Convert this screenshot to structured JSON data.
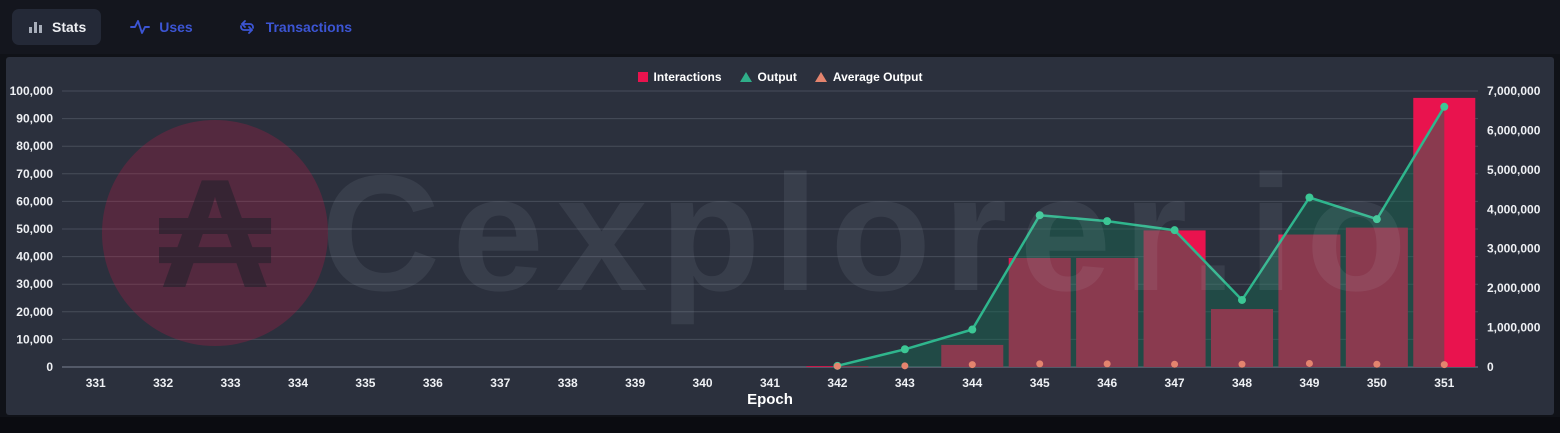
{
  "tabs": [
    {
      "label": "Stats",
      "active": true
    },
    {
      "label": "Uses",
      "active": false
    },
    {
      "label": "Transactions",
      "active": false
    }
  ],
  "accent_blue": "#3c55d4",
  "legend": {
    "items": [
      {
        "label": "Interactions",
        "color": "#e9134e",
        "marker": "square"
      },
      {
        "label": "Output",
        "color": "#2fae89",
        "marker": "triangle"
      },
      {
        "label": "Average Output",
        "color": "#e4846e",
        "marker": "triangle"
      }
    ]
  },
  "watermark": {
    "symbol": "₳",
    "text": "Cexplorer.io"
  },
  "chart_data": {
    "type": "combo",
    "xlabel": "Epoch",
    "legend_position": "top-center",
    "grid": true,
    "categories": [
      331,
      332,
      333,
      334,
      335,
      336,
      337,
      338,
      339,
      340,
      341,
      342,
      343,
      344,
      345,
      346,
      347,
      348,
      349,
      350,
      351
    ],
    "y_left": {
      "min": 0,
      "max": 100000,
      "tick_step": 10000,
      "tick_labels": [
        "0",
        "10,000",
        "20,000",
        "30,000",
        "40,000",
        "50,000",
        "60,000",
        "70,000",
        "80,000",
        "90,000",
        "100,000"
      ]
    },
    "y_right": {
      "min": 0,
      "max": 7000000,
      "tick_step": 1000000,
      "tick_labels": [
        "0",
        "1,000,000",
        "2,000,000",
        "3,000,000",
        "4,000,000",
        "5,000,000",
        "6,000,000",
        "7,000,000"
      ]
    },
    "series": [
      {
        "name": "Interactions",
        "type": "bar",
        "axis": "left",
        "color": "#e9134e",
        "values": [
          0,
          0,
          0,
          0,
          0,
          0,
          0,
          0,
          0,
          0,
          0,
          300,
          0,
          8000,
          39500,
          39500,
          49500,
          21000,
          48000,
          50500,
          97500
        ]
      },
      {
        "name": "Output",
        "type": "area-line",
        "axis": "right",
        "color": "#2fb68d",
        "fill": "rgba(23,107,81,0.45)",
        "point_color": "#3cc795",
        "values": [
          null,
          null,
          null,
          null,
          null,
          null,
          null,
          null,
          null,
          null,
          null,
          30000,
          450000,
          950000,
          3850000,
          3700000,
          3470000,
          1700000,
          4300000,
          3750000,
          6600000
        ]
      },
      {
        "name": "Average Output",
        "type": "points",
        "axis": "right",
        "color": "#e4846e",
        "values": [
          null,
          null,
          null,
          null,
          null,
          null,
          null,
          null,
          null,
          null,
          null,
          20000,
          30000,
          60000,
          80000,
          80000,
          70000,
          70000,
          90000,
          70000,
          60000
        ]
      }
    ]
  }
}
